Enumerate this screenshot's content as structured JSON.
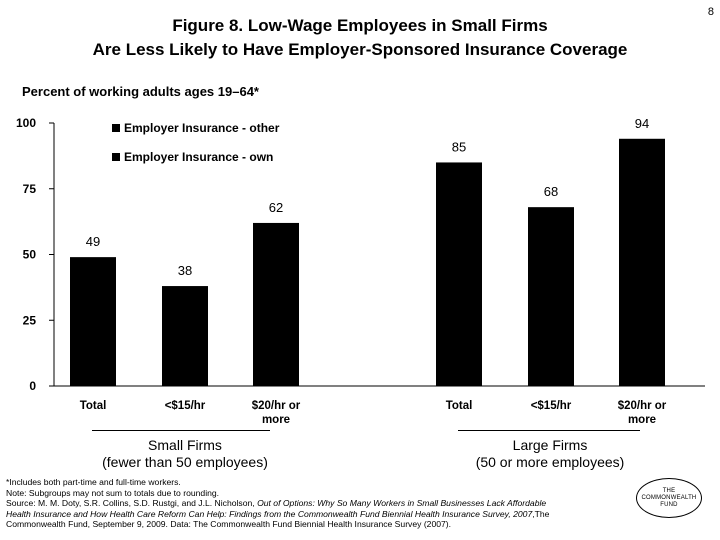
{
  "page_number": "8",
  "title": {
    "line1": "Figure 8. Low-Wage Employees in Small Firms",
    "line2": "Are Less Likely to Have Employer-Sponsored Insurance Coverage"
  },
  "subtitle": "Percent of working adults ages 19–64*",
  "groups": [
    {
      "name": "Small Firms",
      "detail": "(fewer than 50 employees)"
    },
    {
      "name": "Large Firms",
      "detail": "(50 or more employees)"
    }
  ],
  "footnotes": {
    "line1": "*Includes both part-time and full-time workers.",
    "line2": "Note: Subgroups may not sum to totals due to rounding.",
    "line3_pre": "Source: M. M. Doty, S.R. Collins, S.D. Rustgi, and J.L. Nicholson, ",
    "line3_italic": "Out of Options: Why So Many Workers in Small Businesses Lack Affordable",
    "line4_italic": "Health Insurance and How Health Care Reform Can Help: Findings from the Commonwealth Fund Biennial Health Insurance Survey, 2007",
    "line4_post": ",The",
    "line5": "Commonwealth Fund, September 9, 2009. Data: The Commonwealth Fund Biennial Health Insurance Survey (2007)."
  },
  "logo": {
    "line1": "THE",
    "line2": "COMMONWEALTH",
    "line3": "FUND"
  },
  "chart_data": {
    "type": "bar",
    "categories": [
      "Total",
      "<$15/hr",
      "$20/hr or more",
      "Total",
      "<$15/hr",
      "$20/hr or more"
    ],
    "category_groups": [
      "Small Firms",
      "Small Firms",
      "Small Firms",
      "Large Firms",
      "Large Firms",
      "Large Firms"
    ],
    "values": [
      49,
      38,
      62,
      85,
      68,
      94
    ],
    "data_labels": [
      "49",
      "38",
      "62",
      "85",
      "68",
      "94"
    ],
    "legend": [
      "Employer Insurance - other",
      "Employer Insurance - own"
    ],
    "legend_position": "top-left",
    "ylim": [
      0,
      100
    ],
    "yticks": [
      0,
      25,
      50,
      75,
      100
    ],
    "grid": false,
    "bar_color": "#000000"
  }
}
